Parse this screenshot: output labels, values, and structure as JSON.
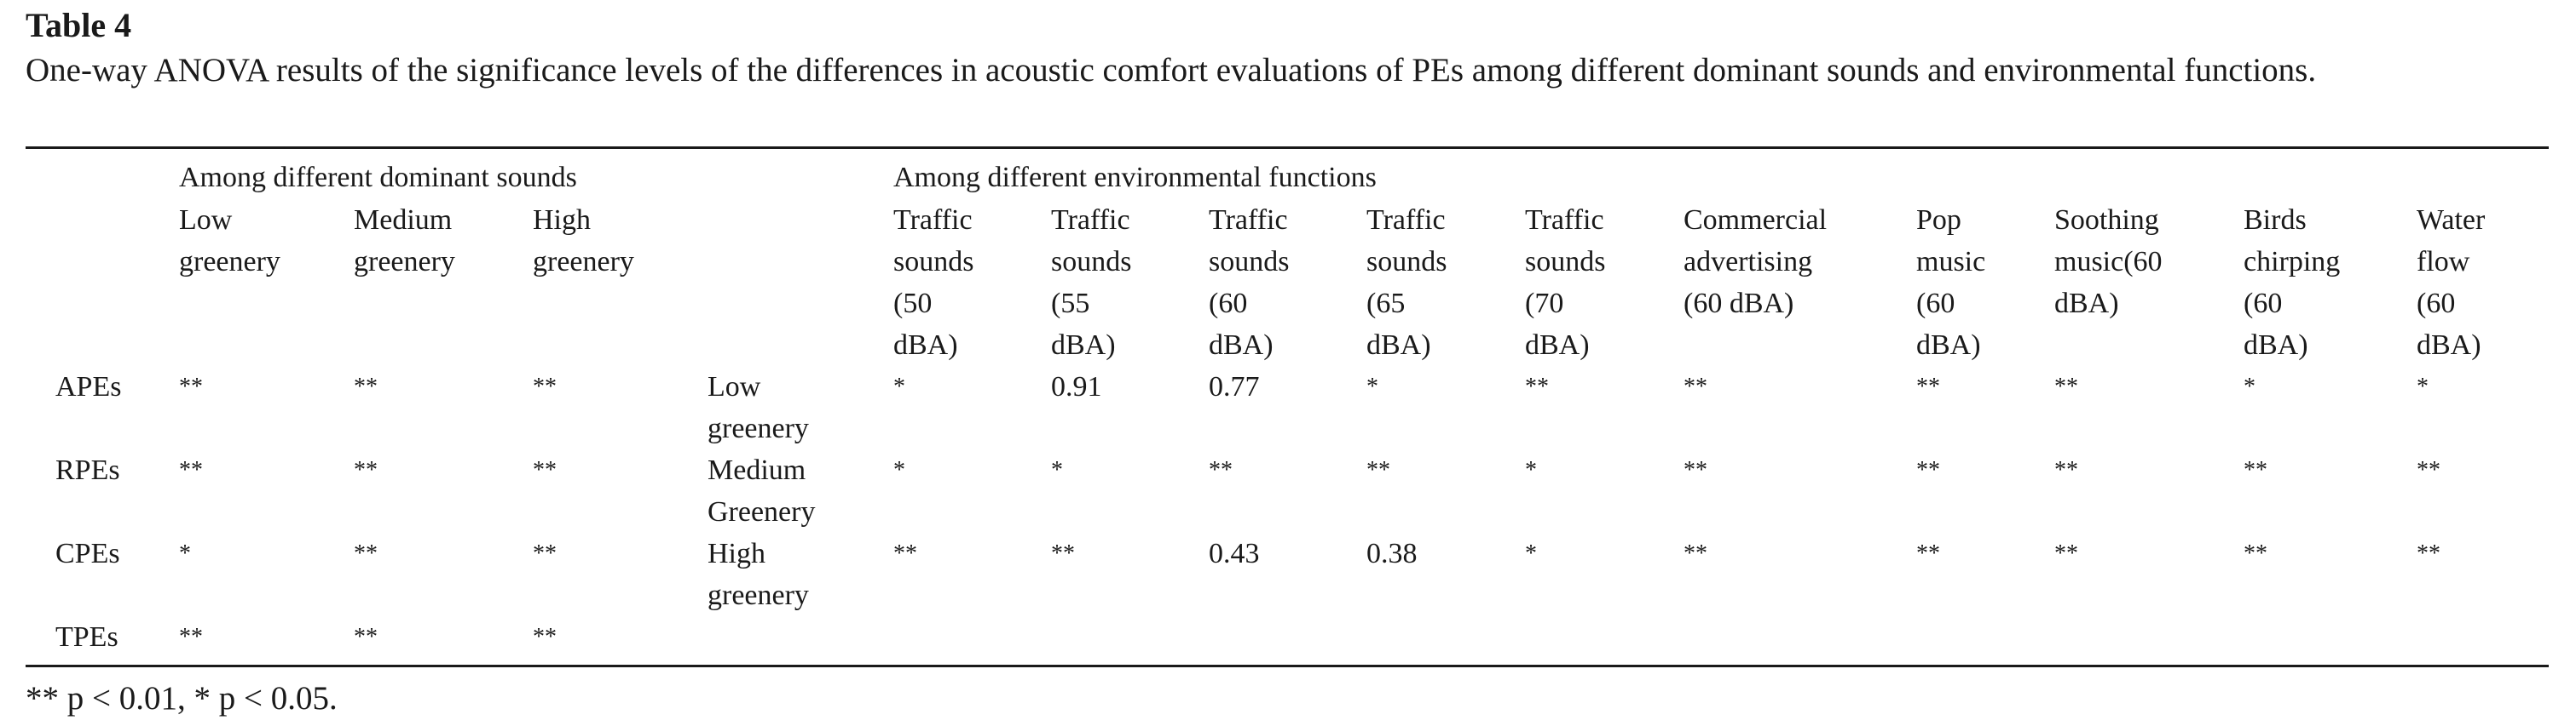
{
  "table": {
    "label": "Table 4",
    "caption": "One-way ANOVA results of the significance levels of the differences in acoustic comfort evaluations of PEs among different dominant sounds and environmental functions.",
    "group_headers": {
      "dominant_sounds": "Among different dominant sounds",
      "environmental_functions": "Among different environmental functions"
    },
    "dominant_columns": [
      "Low\ngreenery",
      "Medium\ngreenery",
      "High\ngreenery"
    ],
    "function_columns": [
      "Traffic\nsounds\n(50\ndBA)",
      "Traffic\nsounds\n(55\ndBA)",
      "Traffic\nsounds\n(60\ndBA)",
      "Traffic\nsounds\n(65\ndBA)",
      "Traffic\nsounds\n(70\ndBA)",
      "Commercial\nadvertising\n(60 dBA)",
      "Pop\nmusic\n(60\ndBA)",
      "Soothing\nmusic(60\ndBA)",
      "Birds\nchirping\n(60\ndBA)",
      "Water\nflow\n(60\ndBA)"
    ],
    "rows": [
      {
        "pe": "APEs",
        "dominant": [
          "**",
          "**",
          "**"
        ],
        "greenery": "Low\ngreenery",
        "functions": [
          "*",
          "0.91",
          "0.77",
          "*",
          "**",
          "**",
          "**",
          "**",
          "*",
          "*"
        ]
      },
      {
        "pe": "RPEs",
        "dominant": [
          "**",
          "**",
          "**"
        ],
        "greenery": "Medium\nGreenery",
        "functions": [
          "*",
          "*",
          "**",
          "**",
          "*",
          "**",
          "**",
          "**",
          "**",
          "**"
        ]
      },
      {
        "pe": "CPEs",
        "dominant": [
          "*",
          "**",
          "**"
        ],
        "greenery": "High\ngreenery",
        "functions": [
          "**",
          "**",
          "0.43",
          "0.38",
          "*",
          "**",
          "**",
          "**",
          "**",
          "**"
        ]
      },
      {
        "pe": "TPEs",
        "dominant": [
          "**",
          "**",
          "**"
        ],
        "greenery": "",
        "functions": [
          "",
          "",
          "",
          "",
          "",
          "",
          "",
          "",
          "",
          ""
        ]
      }
    ],
    "footnote": "** p < 0.01, * p < 0.05."
  }
}
